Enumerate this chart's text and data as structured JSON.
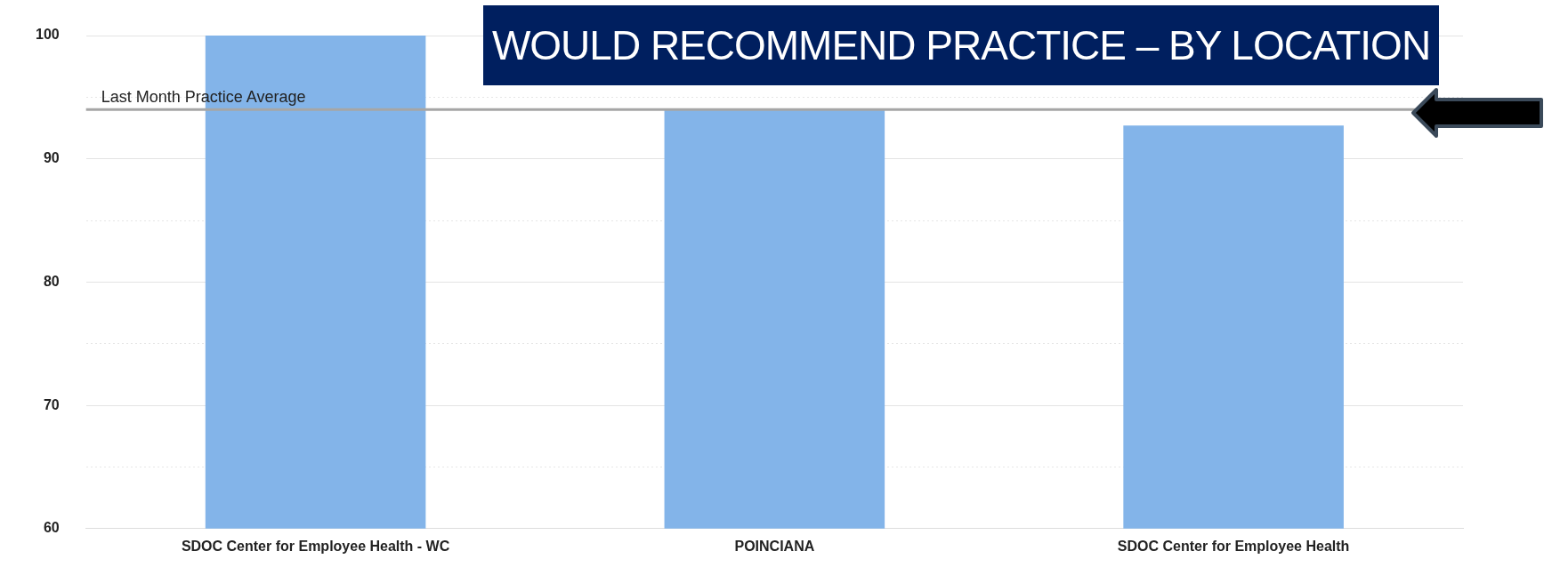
{
  "chart_data": {
    "type": "bar",
    "title": "WOULD RECOMMEND PRACTICE – BY LOCATION",
    "categories": [
      "SDOC Center for Employee Health - WC",
      "POINCIANA",
      "SDOC Center for Employee Health"
    ],
    "values": [
      100,
      94,
      92.7
    ],
    "color": "#83b4e9",
    "ylim": [
      60,
      100
    ],
    "yticks": [
      60,
      {
        "value": 65,
        "label": null
      },
      70,
      {
        "value": 75,
        "label": null
      },
      80,
      {
        "value": 85,
        "label": null
      },
      90,
      {
        "value": 95,
        "label": null
      },
      100
    ],
    "grid": "y",
    "legend": false,
    "ref_lines": [
      {
        "axis": "y",
        "value": 94,
        "label": "Last Month Practice Average",
        "color": "#a6a6a6"
      }
    ]
  }
}
